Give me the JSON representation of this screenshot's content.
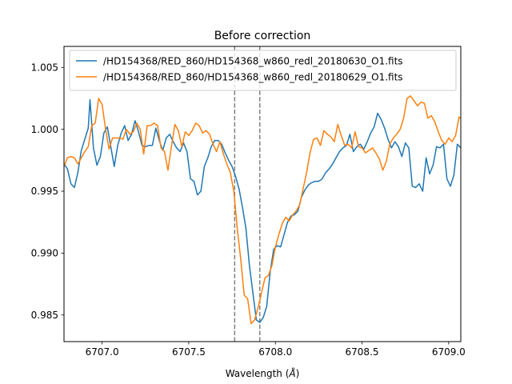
{
  "chart_data": {
    "type": "line",
    "title": "Before correction",
    "xlabel": "Wavelength (",
    "xlabel_unit": "Å",
    "xlabel_close": ")",
    "ylabel": "",
    "xlim": [
      6706.78,
      6709.07
    ],
    "ylim": [
      0.98285,
      1.0067
    ],
    "xticks": [
      6707.0,
      6707.5,
      6708.0,
      6708.5,
      6709.0
    ],
    "xtick_labels": [
      "6707.0",
      "6707.5",
      "6708.0",
      "6708.5",
      "6709.0"
    ],
    "yticks": [
      0.985,
      0.99,
      0.995,
      1.0,
      1.005
    ],
    "ytick_labels": [
      "0.985",
      "0.990",
      "0.995",
      "1.000",
      "1.005"
    ],
    "grid": false,
    "legend_position": "upper-center",
    "vlines": [
      6707.765,
      6707.91
    ],
    "vline_color": "#808080",
    "series": [
      {
        "name": "/HD154368/RED_860/HD154368_w860_redl_20180630_O1.fits",
        "color": "#1f77b4",
        "x": [
          6706.78,
          6706.8,
          6706.82,
          6706.84,
          6706.86,
          6706.88,
          6706.9,
          6706.92,
          6706.93,
          6706.95,
          6706.97,
          6706.99,
          6707.01,
          6707.03,
          6707.05,
          6707.07,
          6707.09,
          6707.11,
          6707.13,
          6707.15,
          6707.17,
          6707.19,
          6707.21,
          6707.23,
          6707.25,
          6707.27,
          6707.29,
          6707.31,
          6707.33,
          6707.35,
          6707.37,
          6707.39,
          6707.41,
          6707.43,
          6707.45,
          6707.47,
          6707.49,
          6707.51,
          6707.53,
          6707.55,
          6707.57,
          6707.59,
          6707.61,
          6707.63,
          6707.65,
          6707.67,
          6707.69,
          6707.71,
          6707.73,
          6707.75,
          6707.77,
          6707.79,
          6707.81,
          6707.83,
          6707.85,
          6707.87,
          6707.89,
          6707.91,
          6707.93,
          6707.95,
          6707.97,
          6707.99,
          6708.01,
          6708.03,
          6708.05,
          6708.07,
          6708.09,
          6708.11,
          6708.13,
          6708.15,
          6708.17,
          6708.19,
          6708.21,
          6708.23,
          6708.25,
          6708.27,
          6708.29,
          6708.31,
          6708.33,
          6708.35,
          6708.37,
          6708.39,
          6708.41,
          6708.43,
          6708.45,
          6708.47,
          6708.49,
          6708.51,
          6708.53,
          6708.55,
          6708.57,
          6708.59,
          6708.61,
          6708.63,
          6708.65,
          6708.67,
          6708.69,
          6708.71,
          6708.73,
          6708.75,
          6708.77,
          6708.79,
          6708.81,
          6708.83,
          6708.85,
          6708.87,
          6708.89,
          6708.91,
          6708.93,
          6708.95,
          6708.97,
          6708.99,
          6709.01,
          6709.03,
          6709.05,
          6709.07
        ],
        "y": [
          0.9972,
          0.9968,
          0.9956,
          0.9953,
          0.9965,
          0.9983,
          0.9992,
          1.0001,
          1.0024,
          0.9985,
          0.9971,
          0.9978,
          0.9997,
          1.0002,
          0.9986,
          0.997,
          0.9987,
          0.9997,
          1.0003,
          0.9991,
          0.9996,
          1.0007,
          0.9998,
          0.9987,
          0.9986,
          0.9987,
          0.9987,
          1.0001,
          0.9991,
          0.9983,
          0.9993,
          0.9996,
          0.999,
          0.9985,
          0.9982,
          0.9989,
          0.9982,
          0.996,
          0.9958,
          0.9947,
          0.995,
          0.997,
          0.9977,
          0.9986,
          0.9991,
          0.9991,
          0.9988,
          0.9981,
          0.9975,
          0.997,
          0.9962,
          0.9952,
          0.9937,
          0.992,
          0.989,
          0.9868,
          0.9846,
          0.9844,
          0.9848,
          0.9857,
          0.9885,
          0.9903,
          0.9906,
          0.9905,
          0.9915,
          0.9925,
          0.993,
          0.9931,
          0.9934,
          0.9945,
          0.9951,
          0.9955,
          0.9957,
          0.9958,
          0.9958,
          0.996,
          0.9965,
          0.9968,
          0.9972,
          0.9977,
          0.9982,
          0.9985,
          0.9987,
          0.9996,
          0.9982,
          0.9986,
          0.9988,
          0.9984,
          0.999,
          0.9997,
          1.0002,
          1.0013,
          1.0008,
          1.0001,
          0.9992,
          0.9985,
          0.999,
          0.9986,
          0.9978,
          0.9989,
          0.9985,
          0.9954,
          0.9953,
          0.9956,
          0.995,
          0.9977,
          0.9964,
          0.9971,
          0.9986,
          0.9985,
          0.9988,
          0.996,
          0.9954,
          0.9963,
          0.9988,
          0.9985
        ]
      },
      {
        "name": "/HD154368/RED_860/HD154368_w860_redl_20180629_O1.fits",
        "color": "#ff7f0e",
        "x": [
          6706.78,
          6706.8,
          6706.82,
          6706.84,
          6706.86,
          6706.88,
          6706.9,
          6706.92,
          6706.94,
          6706.96,
          6706.98,
          6707.0,
          6707.02,
          6707.04,
          6707.06,
          6707.08,
          6707.1,
          6707.12,
          6707.14,
          6707.16,
          6707.18,
          6707.2,
          6707.22,
          6707.24,
          6707.26,
          6707.28,
          6707.3,
          6707.32,
          6707.34,
          6707.36,
          6707.38,
          6707.4,
          6707.42,
          6707.44,
          6707.46,
          6707.48,
          6707.5,
          6707.52,
          6707.54,
          6707.56,
          6707.58,
          6707.6,
          6707.62,
          6707.64,
          6707.66,
          6707.68,
          6707.7,
          6707.72,
          6707.74,
          6707.76,
          6707.78,
          6707.8,
          6707.82,
          6707.84,
          6707.86,
          6707.88,
          6707.9,
          6707.92,
          6707.94,
          6707.96,
          6707.98,
          6708.0,
          6708.02,
          6708.04,
          6708.06,
          6708.08,
          6708.1,
          6708.12,
          6708.14,
          6708.16,
          6708.18,
          6708.2,
          6708.22,
          6708.24,
          6708.26,
          6708.28,
          6708.3,
          6708.32,
          6708.34,
          6708.36,
          6708.38,
          6708.4,
          6708.42,
          6708.44,
          6708.46,
          6708.48,
          6708.5,
          6708.52,
          6708.54,
          6708.56,
          6708.58,
          6708.6,
          6708.62,
          6708.64,
          6708.66,
          6708.68,
          6708.7,
          6708.72,
          6708.74,
          6708.76,
          6708.78,
          6708.8,
          6708.82,
          6708.84,
          6708.86,
          6708.88,
          6708.9,
          6708.92,
          6708.94,
          6708.96,
          6708.98,
          6709.0,
          6709.02,
          6709.04,
          6709.06,
          6709.07
        ],
        "y": [
          0.997,
          0.9977,
          0.9978,
          0.9977,
          0.9972,
          0.9977,
          0.9982,
          0.9986,
          1.0003,
          1.0005,
          1.0025,
          1.002,
          1.0,
          0.9984,
          0.9993,
          0.9993,
          0.9993,
          0.9992,
          1.0,
          0.9996,
          0.9998,
          1.0005,
          1.0,
          0.998,
          1.0003,
          1.0003,
          1.0005,
          1.0003,
          0.9985,
          0.9982,
          0.9967,
          0.9986,
          1.0004,
          0.9999,
          0.9986,
          0.9998,
          0.9995,
          0.9999,
          1.0005,
          1.0003,
          0.9997,
          0.9999,
          0.9996,
          0.9988,
          0.9982,
          0.999,
          0.998,
          0.9972,
          0.9965,
          0.995,
          0.992,
          0.9895,
          0.9866,
          0.9863,
          0.9843,
          0.9846,
          0.9856,
          0.9868,
          0.988,
          0.9882,
          0.989,
          0.9905,
          0.9915,
          0.9924,
          0.9929,
          0.9926,
          0.9931,
          0.9934,
          0.9939,
          0.9952,
          0.9965,
          0.9981,
          0.9992,
          0.9993,
          0.9987,
          0.9999,
          0.9996,
          0.9994,
          0.999,
          1.0004,
          0.9995,
          0.9987,
          0.9988,
          0.9985,
          0.9998,
          0.9986,
          0.9985,
          0.9981,
          0.9983,
          0.9985,
          0.9981,
          0.9976,
          0.9967,
          0.9974,
          0.9988,
          0.9993,
          0.9996,
          1.0,
          1.0009,
          1.0025,
          1.0027,
          1.0023,
          1.0019,
          1.0022,
          1.0021,
          1.0009,
          1.0011,
          1.0006,
          0.9998,
          0.9991,
          0.9988,
          0.9993,
          0.999,
          0.9995,
          1.001,
          1.0009
        ]
      }
    ]
  }
}
